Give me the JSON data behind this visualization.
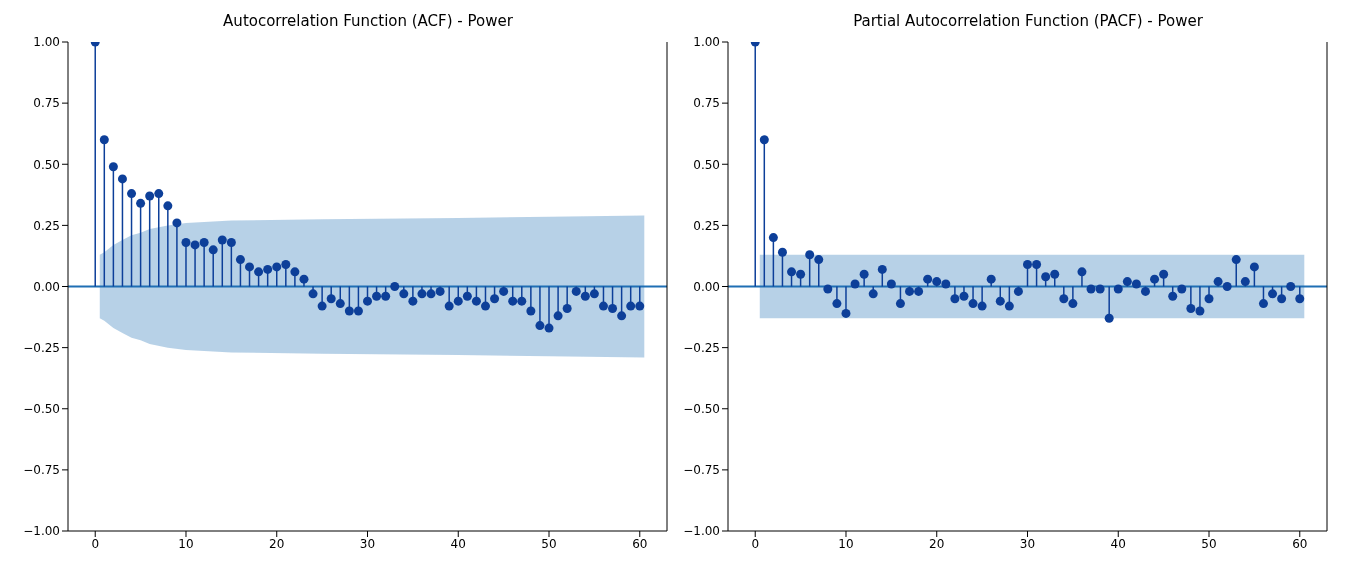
{
  "chart_data": [
    {
      "type": "lollipop",
      "title": "Autocorrelation Function (ACF) - Power",
      "x": [
        0,
        1,
        2,
        3,
        4,
        5,
        6,
        7,
        8,
        9,
        10,
        11,
        12,
        13,
        14,
        15,
        16,
        17,
        18,
        19,
        20,
        21,
        22,
        23,
        24,
        25,
        26,
        27,
        28,
        29,
        30,
        31,
        32,
        33,
        34,
        35,
        36,
        37,
        38,
        39,
        40,
        41,
        42,
        43,
        44,
        45,
        46,
        47,
        48,
        49,
        50,
        51,
        52,
        53,
        54,
        55,
        56,
        57,
        58,
        59,
        60
      ],
      "xlim": [
        -3,
        63
      ],
      "xticks": [
        0,
        10,
        20,
        30,
        40,
        50,
        60
      ],
      "ylim": [
        -1,
        1
      ],
      "yticks": [
        {
          "value": -1,
          "label": "−1.00"
        },
        {
          "value": -0.75,
          "label": "−0.75"
        },
        {
          "value": -0.5,
          "label": "−0.50"
        },
        {
          "value": -0.25,
          "label": "−0.25"
        },
        {
          "value": 0,
          "label": "0.00"
        },
        {
          "value": 0.25,
          "label": "0.25"
        },
        {
          "value": 0.5,
          "label": "0.50"
        },
        {
          "value": 0.75,
          "label": "0.75"
        },
        {
          "value": 1,
          "label": "1.00"
        }
      ],
      "series": [
        {
          "type": "line",
          "color": "#1f6fb4",
          "marker": "none",
          "x": [
            -3,
            0.5,
            1,
            2,
            3,
            4,
            5,
            6,
            8,
            10,
            15,
            25,
            40,
            50,
            60.5,
            63
          ],
          "values": [
            0,
            0,
            0,
            0,
            0,
            0,
            0,
            0,
            0,
            0,
            0,
            0,
            0,
            0,
            0,
            0
          ],
          "lower": [
            null,
            -0.13,
            -0.14,
            -0.17,
            -0.19,
            -0.21,
            -0.22,
            -0.235,
            -0.25,
            -0.26,
            -0.27,
            -0.275,
            -0.28,
            -0.285,
            -0.29,
            null
          ],
          "upper": [
            null,
            0.13,
            0.14,
            0.17,
            0.19,
            0.21,
            0.22,
            0.235,
            0.25,
            0.26,
            0.27,
            0.275,
            0.28,
            0.285,
            0.29,
            null
          ]
        },
        {
          "type": "lollipop",
          "color": "#0d3f99",
          "marker": "circle",
          "values": [
            1.0,
            0.6,
            0.49,
            0.44,
            0.38,
            0.34,
            0.37,
            0.38,
            0.33,
            0.26,
            0.18,
            0.17,
            0.18,
            0.15,
            0.19,
            0.18,
            0.11,
            0.08,
            0.06,
            0.07,
            0.08,
            0.09,
            0.06,
            0.03,
            -0.03,
            -0.08,
            -0.05,
            -0.07,
            -0.1,
            -0.1,
            -0.06,
            -0.04,
            -0.04,
            0.0,
            -0.03,
            -0.06,
            -0.03,
            -0.03,
            -0.02,
            -0.08,
            -0.06,
            -0.04,
            -0.06,
            -0.08,
            -0.05,
            -0.02,
            -0.06,
            -0.06,
            -0.1,
            -0.16,
            -0.17,
            -0.12,
            -0.09,
            -0.02,
            -0.04,
            -0.03,
            -0.08,
            -0.09,
            -0.12,
            -0.08,
            -0.08
          ]
        }
      ]
    },
    {
      "type": "lollipop",
      "title": "Partial Autocorrelation Function (PACF) - Power",
      "x": [
        0,
        1,
        2,
        3,
        4,
        5,
        6,
        7,
        8,
        9,
        10,
        11,
        12,
        13,
        14,
        15,
        16,
        17,
        18,
        19,
        20,
        21,
        22,
        23,
        24,
        25,
        26,
        27,
        28,
        29,
        30,
        31,
        32,
        33,
        34,
        35,
        36,
        37,
        38,
        39,
        40,
        41,
        42,
        43,
        44,
        45,
        46,
        47,
        48,
        49,
        50,
        51,
        52,
        53,
        54,
        55,
        56,
        57,
        58,
        59,
        60
      ],
      "xlim": [
        -3,
        63
      ],
      "xticks": [
        0,
        10,
        20,
        30,
        40,
        50,
        60
      ],
      "ylim": [
        -1,
        1
      ],
      "yticks": [
        {
          "value": -1,
          "label": "−1.00"
        },
        {
          "value": -0.75,
          "label": "−0.75"
        },
        {
          "value": -0.5,
          "label": "−0.50"
        },
        {
          "value": -0.25,
          "label": "−0.25"
        },
        {
          "value": 0,
          "label": "0.00"
        },
        {
          "value": 0.25,
          "label": "0.25"
        },
        {
          "value": 0.5,
          "label": "0.50"
        },
        {
          "value": 0.75,
          "label": "0.75"
        },
        {
          "value": 1,
          "label": "1.00"
        }
      ],
      "series": [
        {
          "type": "line",
          "color": "#1f6fb4",
          "marker": "none",
          "x": [
            -3,
            0.5,
            60.5,
            63
          ],
          "values": [
            0,
            0,
            0,
            0
          ],
          "lower": [
            null,
            -0.13,
            -0.13,
            null
          ],
          "upper": [
            null,
            0.13,
            0.13,
            null
          ]
        },
        {
          "type": "lollipop",
          "color": "#0d3f99",
          "marker": "circle",
          "values": [
            1.0,
            0.6,
            0.2,
            0.14,
            0.06,
            0.05,
            0.13,
            0.11,
            -0.01,
            -0.07,
            -0.11,
            0.01,
            0.05,
            -0.03,
            0.07,
            0.01,
            -0.07,
            -0.02,
            -0.02,
            0.03,
            0.02,
            0.01,
            -0.05,
            -0.04,
            -0.07,
            -0.08,
            0.03,
            -0.06,
            -0.08,
            -0.02,
            0.09,
            0.09,
            0.04,
            0.05,
            -0.05,
            -0.07,
            0.06,
            -0.01,
            -0.01,
            -0.13,
            -0.01,
            0.02,
            0.01,
            -0.02,
            0.03,
            0.05,
            -0.04,
            -0.01,
            -0.09,
            -0.1,
            -0.05,
            0.02,
            0.0,
            0.11,
            0.02,
            0.08,
            -0.07,
            -0.03,
            -0.05,
            0.0,
            -0.05
          ]
        }
      ]
    }
  ]
}
